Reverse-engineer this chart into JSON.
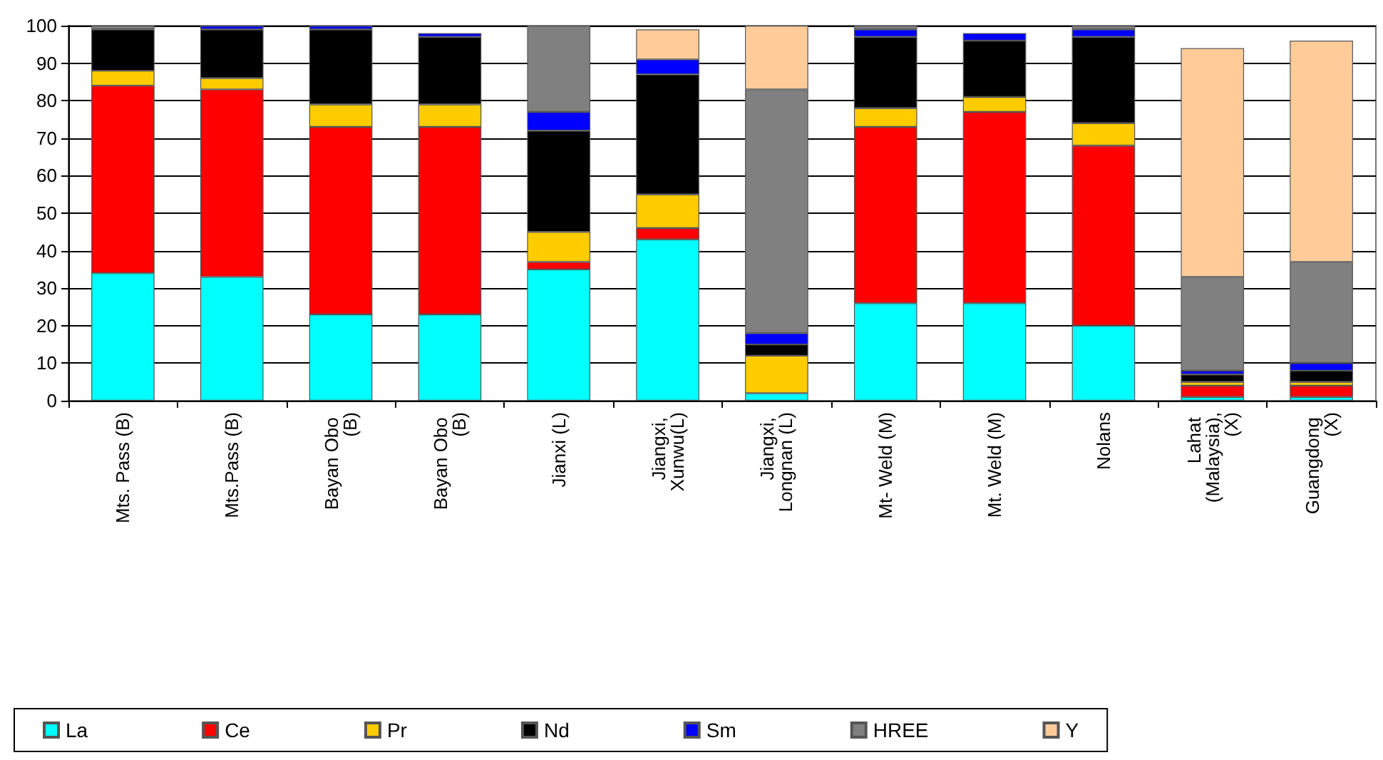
{
  "chart_data": {
    "type": "bar",
    "stacked": true,
    "categories": [
      "Mts. Pass (B)",
      "Mts.Pass (B)",
      "Bayan Obo (B)",
      "Bayan Obo (B)",
      "Jianxi (L)",
      "Jiangxi, Xunwu(L)",
      "Jiangxi, Longnan (L)",
      "Mt- Weld (M)",
      "Mt. Weld (M)",
      "Nolans",
      "Lahat (Malaysia),(X)",
      "Guangdong (X)"
    ],
    "series": [
      {
        "name": "La",
        "color": "#00ffff",
        "values": [
          34,
          33,
          23,
          23,
          35,
          43,
          2,
          26,
          26,
          20,
          1,
          1
        ]
      },
      {
        "name": "Ce",
        "color": "#ff0000",
        "values": [
          50,
          50,
          50,
          50,
          2,
          3,
          0,
          47,
          51,
          48,
          3,
          3
        ]
      },
      {
        "name": "Pr",
        "color": "#ffcc00",
        "values": [
          4,
          3,
          6,
          6,
          8,
          9,
          10,
          5,
          4,
          6,
          1,
          1
        ]
      },
      {
        "name": "Nd",
        "color": "#000000",
        "values": [
          11,
          13,
          20,
          18,
          27,
          32,
          3,
          19,
          15,
          23,
          2,
          3
        ]
      },
      {
        "name": "Sm",
        "color": "#0000ff",
        "values": [
          0,
          1,
          1,
          1,
          5,
          4,
          3,
          2,
          2,
          2,
          1,
          2
        ]
      },
      {
        "name": "HREE",
        "color": "#808080",
        "values": [
          1,
          0,
          0,
          0,
          23,
          0,
          65,
          1,
          0,
          1,
          25,
          27
        ]
      },
      {
        "name": "Y",
        "color": "#ffcc99",
        "values": [
          0,
          0,
          0,
          0,
          0,
          8,
          17,
          0,
          0,
          0,
          61,
          59
        ]
      }
    ],
    "ylim": [
      0,
      100
    ],
    "yticks": [
      0,
      10,
      20,
      30,
      40,
      50,
      60,
      70,
      80,
      90,
      100
    ],
    "grid": "y",
    "legend": "bottom"
  }
}
